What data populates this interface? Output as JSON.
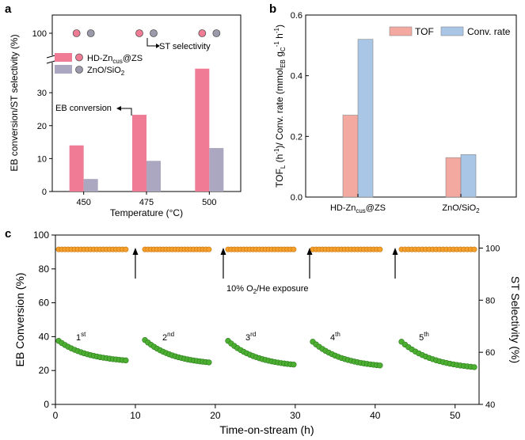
{
  "figure": {
    "panel_labels": [
      "a",
      "b",
      "c"
    ]
  },
  "chart_data": [
    {
      "panel": "a",
      "type": "bar",
      "ylabel": "EB conversion/ST selectivity (%)",
      "xlabel": "Temperature (°C)",
      "categories": [
        "450",
        "475",
        "500"
      ],
      "ylim_lower": [
        0,
        37
      ],
      "y_ticks_lower": [
        "0",
        "10",
        "20",
        "30"
      ],
      "y_ticks_upper": [
        "100"
      ],
      "axis_break": true,
      "series": [
        {
          "name": "HD-Zn",
          "name_sub": "cus",
          "name_tail": "@ZS",
          "color": "#f07b95",
          "values": [
            14.0,
            23.3,
            37.3
          ]
        },
        {
          "name": "ZnO/SiO",
          "name_sub": "2",
          "name_tail": "",
          "color": "#aba7c0",
          "values": [
            3.8,
            9.3,
            13.2
          ]
        }
      ],
      "selectivity": {
        "label": "ST selectivity",
        "values_hd": [
          100,
          100,
          100
        ],
        "values_zno": [
          100,
          100,
          100
        ],
        "color_hd": "#f07b95",
        "color_zno": "#9a9aaa"
      },
      "annotation_conversion": "EB conversion",
      "legend_position": "left"
    },
    {
      "panel": "b",
      "type": "bar",
      "ylabel_main": "TOF",
      "ylabel_sub": "L",
      "ylabel_rest": " (h",
      "ylabel_full": "TOF_L (h^-1)/ Conv. rate (mmol_EB g_C^-1 h^-1)",
      "categories": [
        "HD-Zn",
        "ZnO/SiO"
      ],
      "category_labels": [
        {
          "main": "HD-Zn",
          "sub": "cus",
          "tail": "@ZS"
        },
        {
          "main": "ZnO/SiO",
          "sub": "2",
          "tail": ""
        }
      ],
      "ylim": [
        0,
        0.6
      ],
      "y_ticks": [
        "0.0",
        "0.2",
        "0.4",
        "0.6"
      ],
      "series": [
        {
          "name": "TOF",
          "color": "#f4a9a0",
          "values": [
            0.27,
            0.13
          ]
        },
        {
          "name": "Conv. rate",
          "color": "#a9c6e6",
          "values": [
            0.52,
            0.14
          ]
        }
      ],
      "legend_position": "top-right"
    },
    {
      "panel": "c",
      "type": "scatter",
      "xlabel": "Time-on-stream (h)",
      "ylabel_left": "EB Conversion (%)",
      "ylabel_right": "ST Selectivity (%)",
      "xlim": [
        0,
        53
      ],
      "ylim_left": [
        0,
        100
      ],
      "ylim_right": [
        40,
        105
      ],
      "x_ticks": [
        "0",
        "10",
        "20",
        "30",
        "40",
        "50"
      ],
      "y_ticks_left": [
        "0",
        "20",
        "40",
        "60",
        "80",
        "100"
      ],
      "y_ticks_right": [
        "40",
        "60",
        "80",
        "100"
      ],
      "annotation": "10% O",
      "annotation_sub": "2",
      "annotation_tail": "/He exposure",
      "regeneration_times": [
        10,
        21,
        31.8,
        42.5
      ],
      "cycles": [
        {
          "label": "1",
          "sup": "st",
          "start": 0.4,
          "end": 8.8,
          "conv_start": 37.5,
          "conv_end": 26
        },
        {
          "label": "2",
          "sup": "nd",
          "start": 11.2,
          "end": 19.2,
          "conv_start": 38,
          "conv_end": 24.8
        },
        {
          "label": "3",
          "sup": "rd",
          "start": 21.6,
          "end": 29.8,
          "conv_start": 37.5,
          "conv_end": 23.5
        },
        {
          "label": "4",
          "sup": "th",
          "start": 32.2,
          "end": 40.6,
          "conv_start": 37,
          "conv_end": 23
        },
        {
          "label": "5",
          "sup": "th",
          "start": 43.3,
          "end": 52.4,
          "conv_start": 37,
          "conv_end": 22
        }
      ],
      "selectivity_value": 99.5,
      "conv_color": "#4caf32",
      "sel_color": "#f5a02c"
    }
  ]
}
